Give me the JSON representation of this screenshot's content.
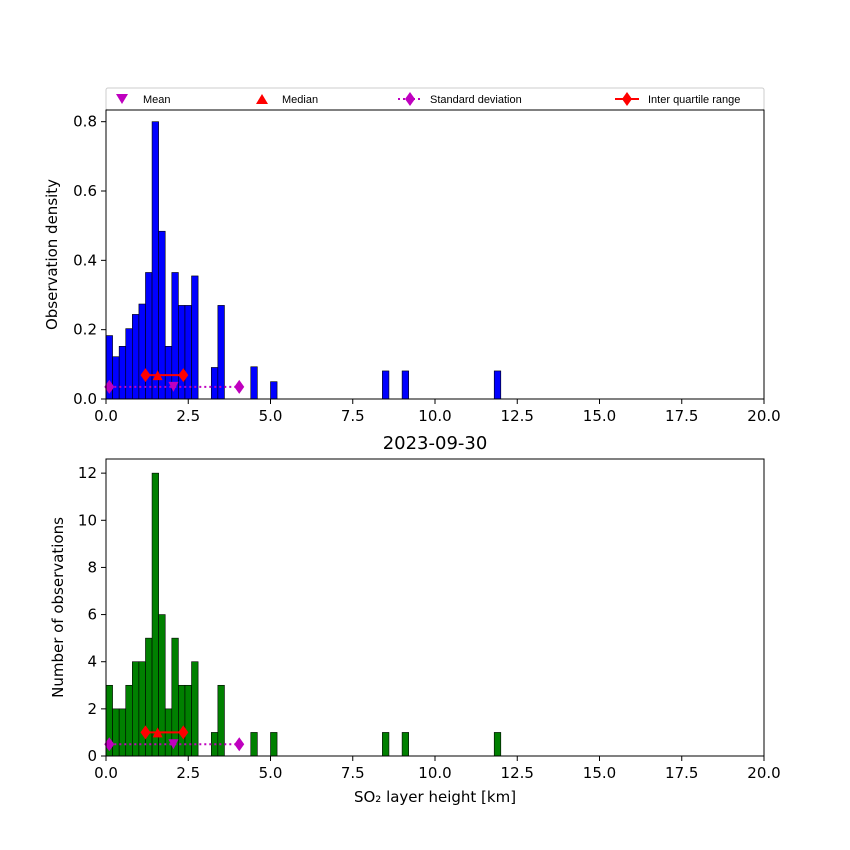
{
  "chart_data": [
    {
      "type": "bar",
      "panel": "top",
      "title": "",
      "xlabel": "",
      "ylabel": "Observation density",
      "xlim": [
        0,
        20
      ],
      "ylim": [
        0,
        0.8337
      ],
      "xticks": [
        0,
        2.5,
        5,
        7.5,
        10,
        12.5,
        15,
        17.5,
        20
      ],
      "xtick_labels": [
        "0.0",
        "2.5",
        "5.0",
        "7.5",
        "10.0",
        "12.5",
        "15.0",
        "17.5",
        "20.0"
      ],
      "yticks": [
        0,
        0.2,
        0.4,
        0.6,
        0.8
      ],
      "ytick_labels": [
        "0.0",
        "0.2",
        "0.4",
        "0.6",
        "0.8"
      ],
      "bar_color": "#0000ff",
      "bin_width": 0.2,
      "bins": [
        {
          "x": 0.0,
          "value": 0.183
        },
        {
          "x": 0.2,
          "value": 0.122
        },
        {
          "x": 0.4,
          "value": 0.152
        },
        {
          "x": 0.6,
          "value": 0.203
        },
        {
          "x": 0.8,
          "value": 0.244
        },
        {
          "x": 1.0,
          "value": 0.274
        },
        {
          "x": 1.2,
          "value": 0.365
        },
        {
          "x": 1.4,
          "value": 0.8
        },
        {
          "x": 1.6,
          "value": 0.484
        },
        {
          "x": 1.8,
          "value": 0.152
        },
        {
          "x": 2.0,
          "value": 0.365
        },
        {
          "x": 2.2,
          "value": 0.27
        },
        {
          "x": 2.4,
          "value": 0.27
        },
        {
          "x": 2.6,
          "value": 0.355
        },
        {
          "x": 3.2,
          "value": 0.091
        },
        {
          "x": 3.4,
          "value": 0.27
        },
        {
          "x": 4.4,
          "value": 0.093
        },
        {
          "x": 5.0,
          "value": 0.05
        },
        {
          "x": 8.4,
          "value": 0.081
        },
        {
          "x": 9.0,
          "value": 0.081
        },
        {
          "x": 11.8,
          "value": 0.081
        }
      ],
      "stats": {
        "y": 0.069,
        "sd_y": 0.035,
        "mean": 2.05,
        "median": 1.57,
        "std_range": [
          0.1,
          4.05
        ],
        "iqr_range": [
          1.2,
          2.35
        ]
      }
    },
    {
      "type": "bar",
      "panel": "bottom",
      "title": "2023-09-30",
      "xlabel": "SO₂ layer height [km]",
      "ylabel": "Number of observations",
      "xlim": [
        0,
        20
      ],
      "ylim": [
        0,
        12.6
      ],
      "xticks": [
        0,
        2.5,
        5,
        7.5,
        10,
        12.5,
        15,
        17.5,
        20
      ],
      "xtick_labels": [
        "0.0",
        "2.5",
        "5.0",
        "7.5",
        "10.0",
        "12.5",
        "15.0",
        "17.5",
        "20.0"
      ],
      "yticks": [
        0,
        2,
        4,
        6,
        8,
        10,
        12
      ],
      "ytick_labels": [
        "0",
        "2",
        "4",
        "6",
        "8",
        "10",
        "12"
      ],
      "bar_color": "#008000",
      "bin_width": 0.2,
      "bins": [
        {
          "x": 0.0,
          "value": 3
        },
        {
          "x": 0.2,
          "value": 2
        },
        {
          "x": 0.4,
          "value": 2
        },
        {
          "x": 0.6,
          "value": 3
        },
        {
          "x": 0.8,
          "value": 4
        },
        {
          "x": 1.0,
          "value": 4
        },
        {
          "x": 1.2,
          "value": 5
        },
        {
          "x": 1.4,
          "value": 12
        },
        {
          "x": 1.6,
          "value": 6
        },
        {
          "x": 1.8,
          "value": 2
        },
        {
          "x": 2.0,
          "value": 5
        },
        {
          "x": 2.2,
          "value": 3
        },
        {
          "x": 2.4,
          "value": 3
        },
        {
          "x": 2.6,
          "value": 4
        },
        {
          "x": 3.2,
          "value": 1
        },
        {
          "x": 3.4,
          "value": 3
        },
        {
          "x": 4.4,
          "value": 1
        },
        {
          "x": 5.0,
          "value": 1
        },
        {
          "x": 8.4,
          "value": 1
        },
        {
          "x": 9.0,
          "value": 1
        },
        {
          "x": 11.8,
          "value": 1
        }
      ],
      "stats": {
        "y": 1.0,
        "sd_y": 0.5,
        "mean": 2.05,
        "median": 1.57,
        "std_range": [
          0.1,
          4.05
        ],
        "iqr_range": [
          1.2,
          2.35
        ]
      }
    }
  ],
  "legend": {
    "placement": "top",
    "entries": [
      {
        "label": "Mean",
        "marker": "triangle-down",
        "color": "#bf00bf"
      },
      {
        "label": "Median",
        "marker": "triangle-up",
        "color": "#ff0000"
      },
      {
        "label": "Standard deviation",
        "marker": "diamond-dotted-line",
        "color": "#bf00bf"
      },
      {
        "label": "Inter quartile range",
        "marker": "diamond-solid-line",
        "color": "#ff0000"
      }
    ]
  },
  "colors": {
    "mean": "#bf00bf",
    "median": "#ff0000",
    "std": "#bf00bf",
    "iqr": "#ff0000",
    "bar_edge": "#000000"
  }
}
